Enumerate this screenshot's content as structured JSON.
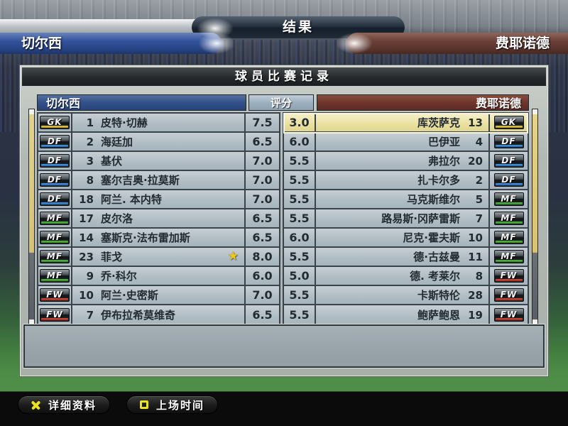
{
  "header": {
    "result_title": "结果",
    "home_team": "切尔西",
    "away_team": "费耶诺德"
  },
  "panel": {
    "title": "球员比赛记录",
    "home_header": "切尔西",
    "rating_header": "评分",
    "away_header": "费耶诺德"
  },
  "players": {
    "home": [
      {
        "pos": "GK",
        "num": "1",
        "name": "皮特·切赫",
        "rating": "7.5",
        "star": false
      },
      {
        "pos": "DF",
        "num": "2",
        "name": "海廷加",
        "rating": "6.5",
        "star": false
      },
      {
        "pos": "DF",
        "num": "3",
        "name": "基伏",
        "rating": "7.0",
        "star": false
      },
      {
        "pos": "DF",
        "num": "8",
        "name": "塞尔吉奥·拉莫斯",
        "rating": "7.0",
        "star": false
      },
      {
        "pos": "DF",
        "num": "18",
        "name": "阿兰. 本内特",
        "rating": "7.0",
        "star": false
      },
      {
        "pos": "MF",
        "num": "17",
        "name": "皮尔洛",
        "rating": "6.5",
        "star": false
      },
      {
        "pos": "MF",
        "num": "14",
        "name": "塞斯克·法布雷加斯",
        "rating": "6.5",
        "star": false
      },
      {
        "pos": "MF",
        "num": "23",
        "name": "菲戈",
        "rating": "8.0",
        "star": true
      },
      {
        "pos": "MF",
        "num": "9",
        "name": "乔·科尔",
        "rating": "6.0",
        "star": false
      },
      {
        "pos": "FW",
        "num": "10",
        "name": "阿兰·史密斯",
        "rating": "7.0",
        "star": false
      },
      {
        "pos": "FW",
        "num": "7",
        "name": "伊布拉希莫维奇",
        "rating": "6.5",
        "star": false
      }
    ],
    "away": [
      {
        "pos": "GK",
        "num": "13",
        "name": "库茨萨克",
        "rating": "3.0",
        "selected": true
      },
      {
        "pos": "DF",
        "num": "4",
        "name": "巴伊亚",
        "rating": "6.0",
        "selected": false
      },
      {
        "pos": "DF",
        "num": "20",
        "name": "弗拉尔",
        "rating": "5.5",
        "selected": false
      },
      {
        "pos": "DF",
        "num": "2",
        "name": "扎卡尔多",
        "rating": "5.5",
        "selected": false
      },
      {
        "pos": "MF",
        "num": "5",
        "name": "马克斯维尔",
        "rating": "5.5",
        "selected": false
      },
      {
        "pos": "MF",
        "num": "7",
        "name": "路易斯·冈萨雷斯",
        "rating": "5.5",
        "selected": false
      },
      {
        "pos": "MF",
        "num": "10",
        "name": "尼克·霍夫斯",
        "rating": "6.0",
        "selected": false
      },
      {
        "pos": "MF",
        "num": "11",
        "name": "德·古兹曼",
        "rating": "5.5",
        "selected": false
      },
      {
        "pos": "FW",
        "num": "8",
        "name": "德. 考莱尔",
        "rating": "5.0",
        "selected": false
      },
      {
        "pos": "FW",
        "num": "28",
        "name": "卡斯特伦",
        "rating": "5.5",
        "selected": false
      },
      {
        "pos": "FW",
        "num": "19",
        "name": "鲍萨鲍恩",
        "rating": "5.5",
        "selected": false
      }
    ]
  },
  "footer": {
    "buttons": [
      {
        "icon": "x-button-icon",
        "label": "详细资料"
      },
      {
        "icon": "square-button-icon",
        "label": "上场时间"
      }
    ]
  },
  "icons": {
    "man_of_match_star": "★"
  },
  "colors": {
    "home_bar": "#33529c",
    "away_bar": "#6b4038",
    "result_bar": "#25313f",
    "row_bg": "#b7c2c9",
    "selected_row": "#eae09f",
    "scrollbar_thumb": "#d9c270",
    "star": "#edc71e",
    "button_glyph": "#e9e41c",
    "pos_gk": "#d4b62c",
    "pos_df": "#2b7fd4",
    "pos_mf": "#3fa32e",
    "pos_fw": "#c03226"
  }
}
